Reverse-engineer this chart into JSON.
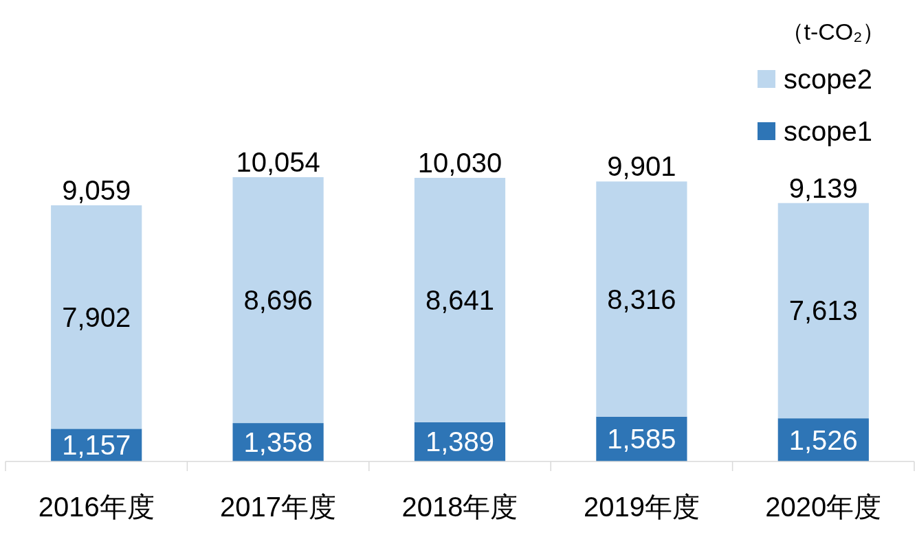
{
  "chart_data": {
    "type": "bar",
    "stacked": true,
    "legend": "top right",
    "annotations": [
      "（t-CO₂）"
    ],
    "categories": [
      "2016年度",
      "2017年度",
      "2018年度",
      "2019年度",
      "2020年度"
    ],
    "series": [
      {
        "name": "scope1",
        "color": "#2e75b6",
        "values": [
          1157,
          1358,
          1389,
          1585,
          1526
        ],
        "value_labels": [
          "1,157",
          "1,358",
          "1,389",
          "1,585",
          "1,526"
        ]
      },
      {
        "name": "scope2",
        "color": "#bdd7ee",
        "values": [
          7902,
          8696,
          8641,
          8316,
          7613
        ],
        "value_labels": [
          "7,902",
          "8,696",
          "8,641",
          "8,316",
          "7,613"
        ]
      }
    ],
    "totals": [
      "9,059",
      "10,054",
      "10,030",
      "9,901",
      "9,139"
    ]
  }
}
